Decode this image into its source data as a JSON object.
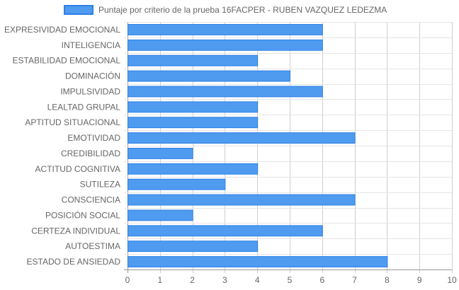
{
  "chart_data": {
    "type": "bar",
    "orientation": "horizontal",
    "categories": [
      "EXPRESIVIDAD EMOCIONAL",
      "INTELIGENCIA",
      "ESTABILIDAD EMOCIONAL",
      "DOMINACIÓN",
      "IMPULSIVIDAD",
      "LEALTAD GRUPAL",
      "APTITUD SITUACIONAL",
      "EMOTIVIDAD",
      "CREDIBILIDAD",
      "ACTITUD COGNITIVA",
      "SUTILEZA",
      "CONSCIENCIA",
      "POSICIÓN SOCIAL",
      "CERTEZA INDIVIDUAL",
      "AUTOESTIMA",
      "ESTADO DE ANSIEDAD"
    ],
    "series": [
      {
        "name": "Puntaje por criterio de la prueba 16FACPER - RUBEN VAZQUEZ LEDEZMA",
        "values": [
          6,
          6,
          4,
          5,
          6,
          4,
          4,
          7,
          2,
          4,
          3,
          7,
          2,
          6,
          4,
          8
        ],
        "color": "#4e9bf0",
        "border_color": "#2f80e6"
      }
    ],
    "xlim": [
      0,
      10
    ],
    "xticks": [
      0,
      1,
      2,
      3,
      4,
      5,
      6,
      7,
      8,
      9,
      10
    ],
    "grid": true,
    "legend": "top",
    "title": "",
    "xlabel": "",
    "ylabel": ""
  }
}
